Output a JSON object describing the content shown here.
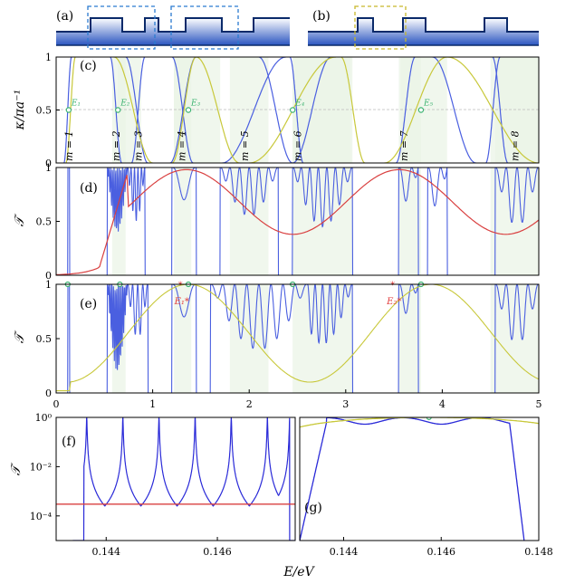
{
  "chart_data": [
    {
      "panel": "(a)",
      "type": "diagram",
      "description_label": "(a)"
    },
    {
      "panel": "(b)",
      "type": "diagram",
      "description_label": "(b)"
    },
    {
      "panel": "(c)",
      "type": "line",
      "ylabel": "κ/πa⁻¹",
      "xlim": [
        0,
        5
      ],
      "ylim": [
        0,
        1
      ],
      "yticks": [
        "0",
        "0.5",
        "1"
      ],
      "band_labels": [
        "m = 1",
        "m = 2",
        "m = 3",
        "m = 4",
        "m = 5",
        "m = 6",
        "m = 7",
        "m = 8"
      ],
      "band_label_x": [
        0.13,
        0.62,
        0.85,
        1.3,
        1.95,
        2.5,
        3.6,
        4.75
      ],
      "points": [
        {
          "label": "E₁",
          "x": 0.13,
          "y": 0.5
        },
        {
          "label": "E₂",
          "x": 0.64,
          "y": 0.5
        },
        {
          "label": "E₃",
          "x": 1.37,
          "y": 0.5
        },
        {
          "label": "E₄",
          "x": 2.45,
          "y": 0.5
        },
        {
          "label": "E₅",
          "x": 3.78,
          "y": 0.5
        }
      ]
    },
    {
      "panel": "(d)",
      "type": "line",
      "ylabel": "𝒯",
      "xlim": [
        0,
        5
      ],
      "ylim": [
        0,
        1
      ],
      "yticks": [
        "0",
        "0.5",
        "1"
      ]
    },
    {
      "panel": "(e)",
      "type": "line",
      "ylabel": "𝒯",
      "xlim": [
        0,
        5
      ],
      "ylim": [
        0,
        1
      ],
      "yticks": [
        "0",
        "0.5",
        "1"
      ],
      "xticks": [
        "0",
        "1",
        "2",
        "3",
        "4",
        "5"
      ],
      "star_points": [
        {
          "label": "E₁*",
          "x": 1.3
        },
        {
          "label": "E₂*",
          "x": 3.5
        }
      ]
    },
    {
      "panel": "(f)",
      "type": "line",
      "ylabel": "𝒯",
      "yscale": "log",
      "xlim": [
        0.1431,
        0.1474
      ],
      "ylim": [
        1e-05,
        1
      ],
      "yticks": [
        "10⁰",
        "10⁻²",
        "10⁻⁴"
      ],
      "xticks": [
        "0.144",
        "0.146"
      ],
      "red_level": 0.0003
    },
    {
      "panel": "(g)",
      "type": "line",
      "yscale": "log",
      "xlim": [
        0.1431,
        0.148
      ],
      "ylim": [
        1e-05,
        1
      ],
      "xticks": [
        "0.144",
        "0.146",
        "0.148"
      ]
    }
  ],
  "xlabel": "E/eV",
  "colors": {
    "blue": "#4a5fe0",
    "yellow": "#c8c83a",
    "red": "#d94040",
    "green": "#3cb371",
    "band": "#e9f3e6"
  }
}
